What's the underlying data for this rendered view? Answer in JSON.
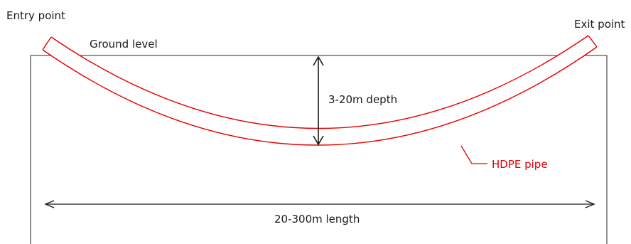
{
  "diagram": {
    "labels": {
      "entry_point": "Entry point",
      "exit_point": "Exit point",
      "ground_level": "Ground level",
      "depth": "3-20m depth",
      "pipe": "HDPE pipe",
      "length": "20-300m length"
    },
    "colors": {
      "pipe": "#e60000",
      "lines": "#1a1a1a",
      "ground_outline": "#555555",
      "background": "#ffffff"
    }
  }
}
